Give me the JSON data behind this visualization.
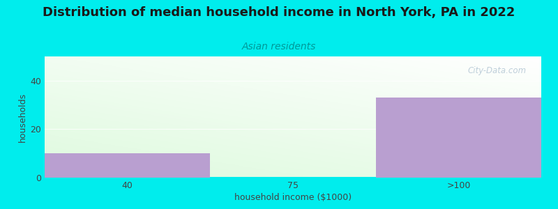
{
  "title": "Distribution of median household income in North York, PA in 2022",
  "subtitle": "Asian residents",
  "categories": [
    "40",
    "75",
    ">100"
  ],
  "values": [
    10,
    0,
    33
  ],
  "bar_color": "#b99fd0",
  "background_color": "#00eded",
  "xlabel": "household income ($1000)",
  "ylabel": "households",
  "ylim": [
    0,
    50
  ],
  "yticks": [
    0,
    20,
    40
  ],
  "title_fontsize": 13,
  "subtitle_fontsize": 10,
  "axis_label_fontsize": 9,
  "tick_fontsize": 9,
  "watermark": "City-Data.com"
}
